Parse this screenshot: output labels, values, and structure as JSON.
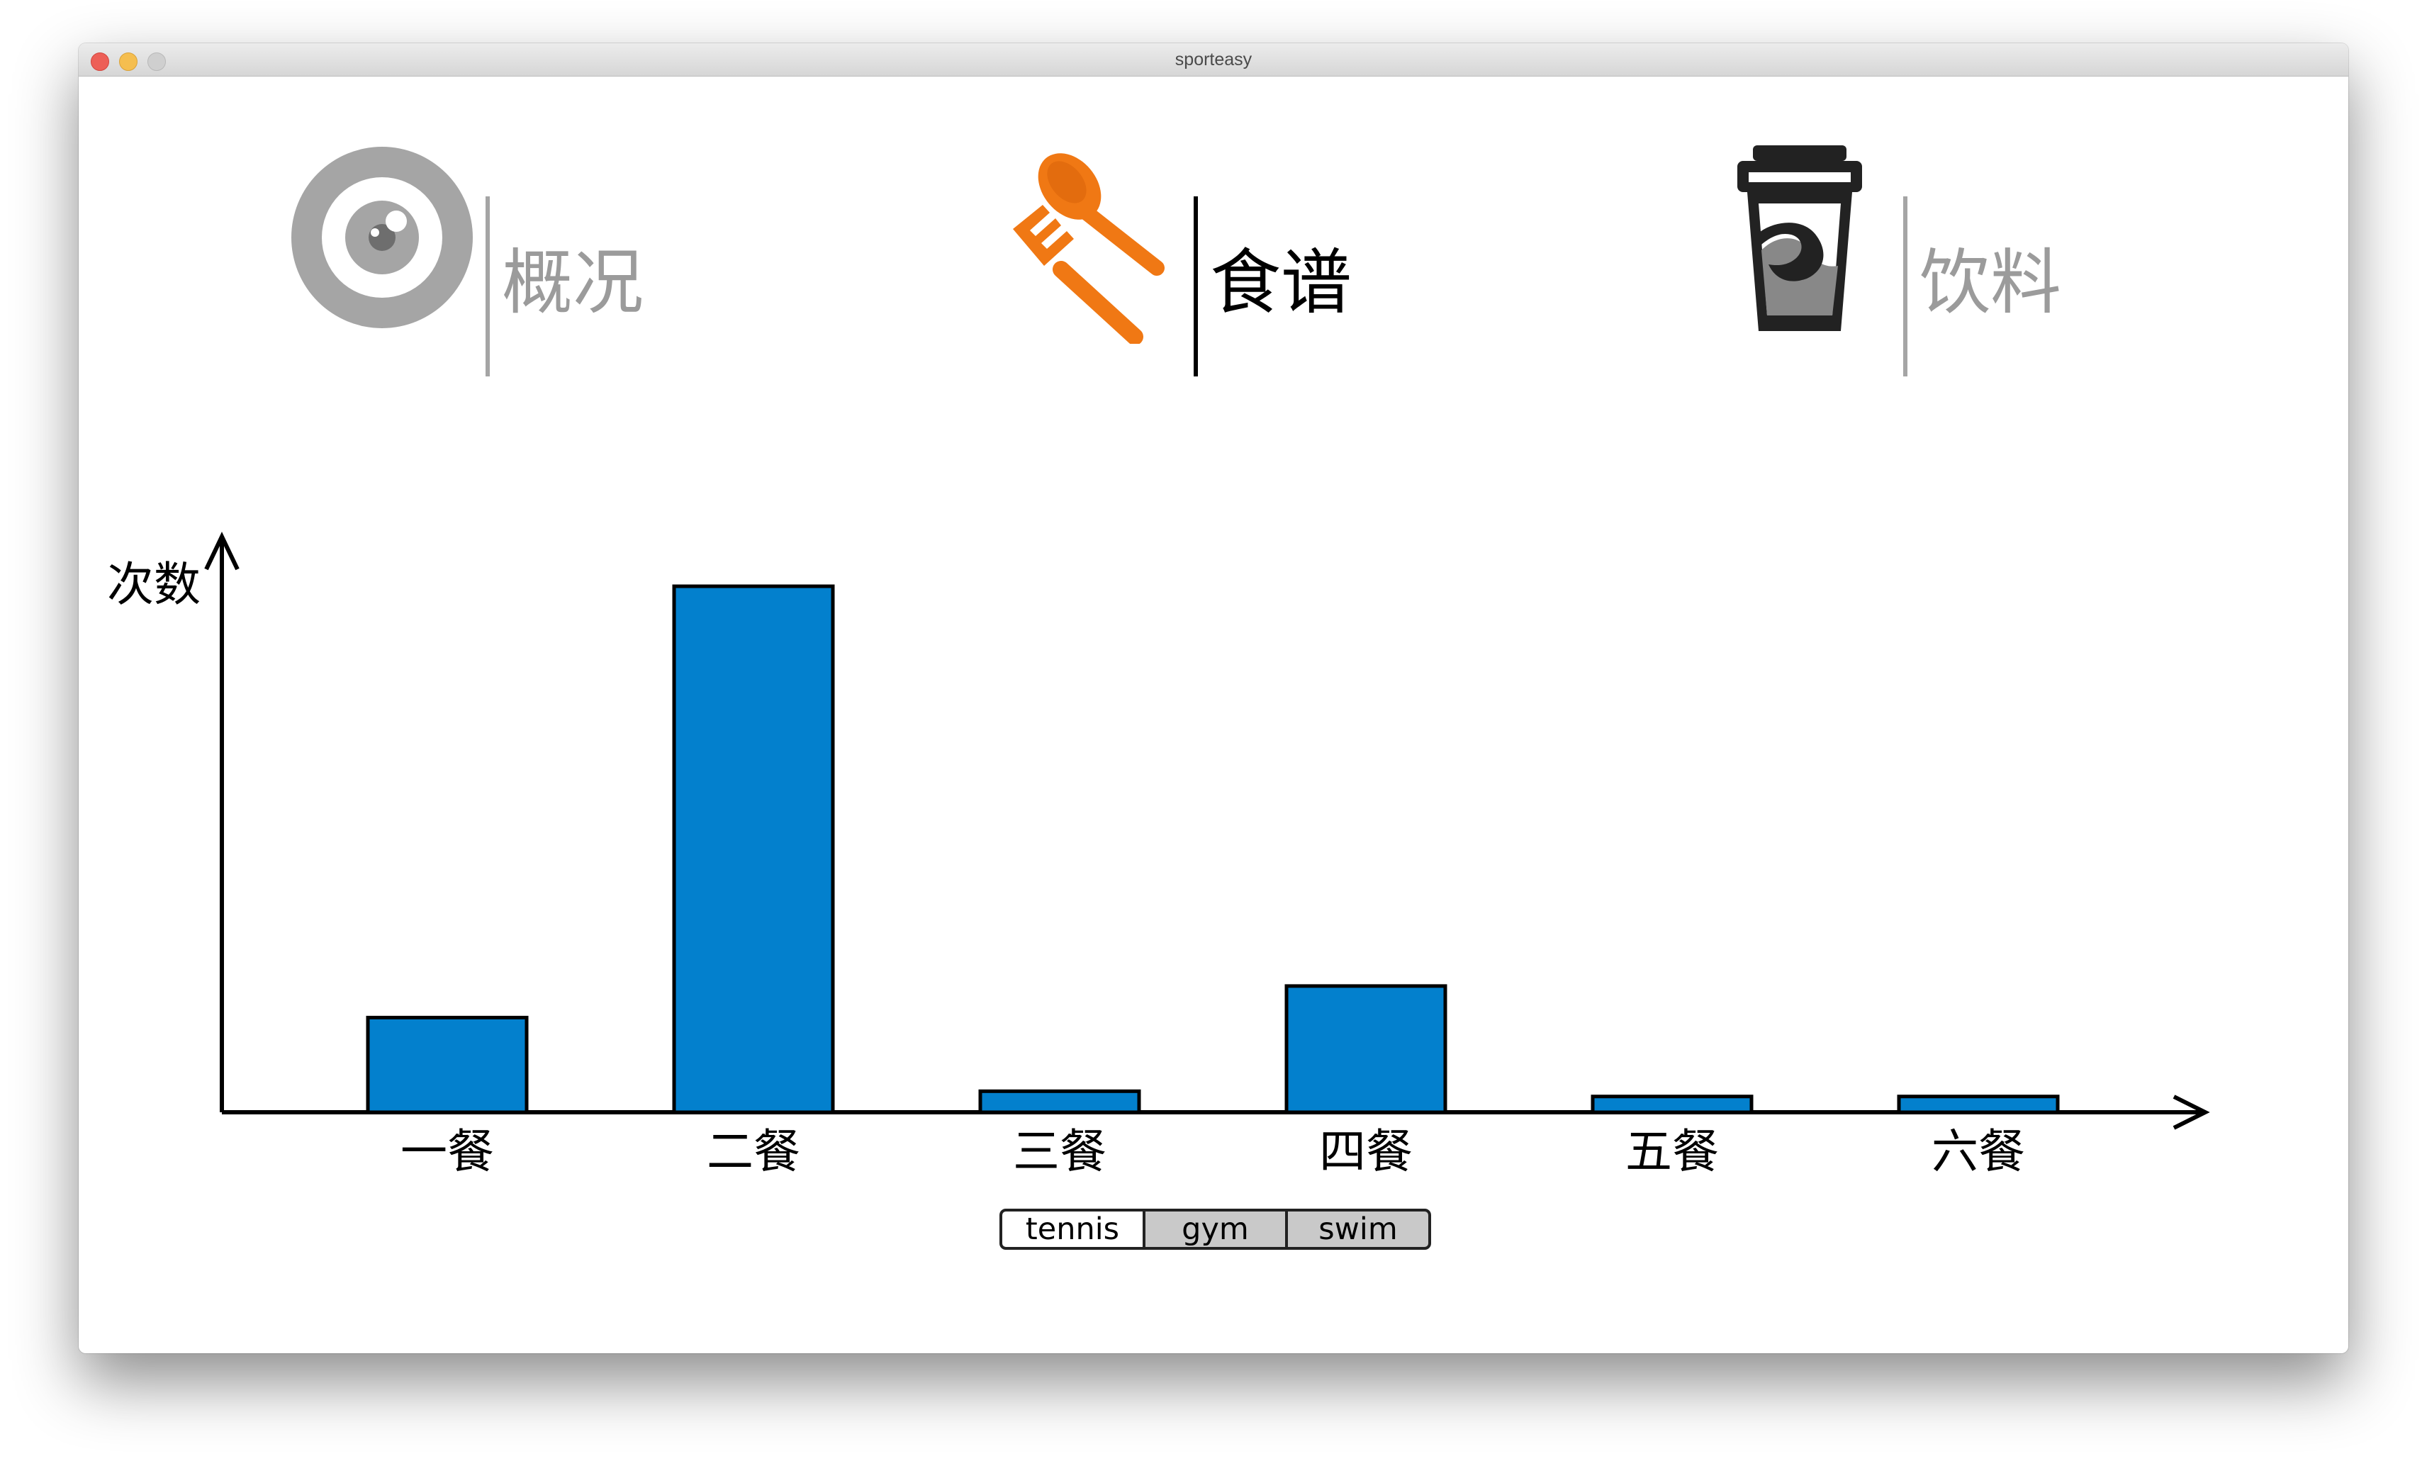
{
  "window": {
    "title": "sporteasy"
  },
  "tabs": [
    {
      "label": "概况",
      "icon": "eye-icon",
      "active": false
    },
    {
      "label": "食谱",
      "icon": "fork-spoon-icon",
      "active": true
    },
    {
      "label": "饮料",
      "icon": "drink-cup-icon",
      "active": false
    }
  ],
  "colors": {
    "active_text": "#000000",
    "inactive_text": "#9b9b9b",
    "bar_fill": "#0380cd",
    "utensil_orange": "#f07814"
  },
  "segmented_control": {
    "options": [
      "tennis",
      "gym",
      "swim"
    ],
    "selected": "tennis"
  },
  "chart_data": {
    "type": "bar",
    "ylabel": "次数",
    "xlabel": "",
    "categories": [
      "一餐",
      "二餐",
      "三餐",
      "四餐",
      "五餐",
      "六餐"
    ],
    "values": [
      18,
      100,
      4,
      24,
      3,
      3
    ],
    "ylim": [
      0,
      100
    ],
    "grid": false
  }
}
